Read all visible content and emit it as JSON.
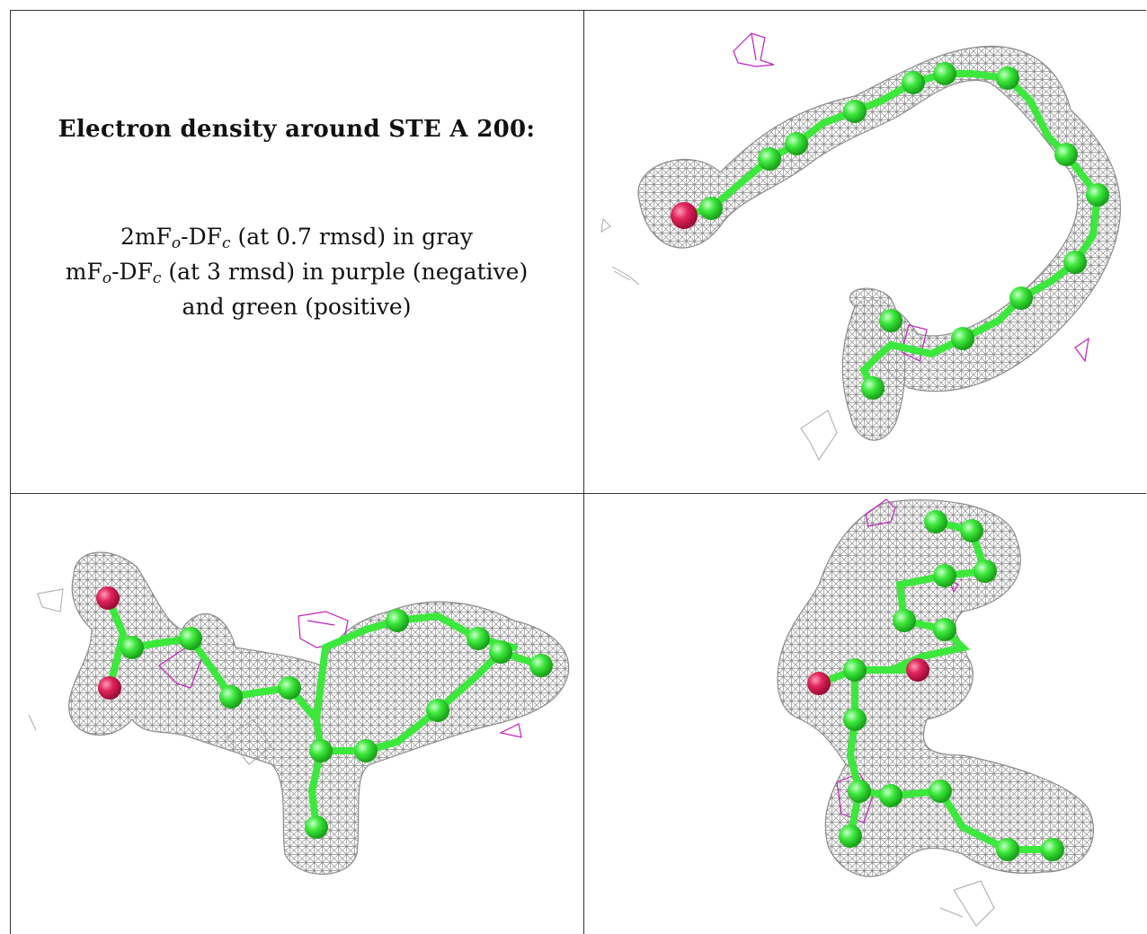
{
  "caption": {
    "title": "Electron density around STE A 200:",
    "line1": {
      "pre": "2mF",
      "sub1": "o",
      "mid": "-DF",
      "sub2": "c",
      "post": " (at 0.7 rmsd) in gray"
    },
    "line2": {
      "pre": "mF",
      "sub1": "o",
      "mid": "-DF",
      "sub2": "c",
      "post": " (at 3 rmsd) in purple (negative)"
    },
    "line3": "and green (positive)"
  },
  "colors": {
    "mesh_2fofc": "#9a9a9a",
    "mesh_negative": "#c020c0",
    "carbon_atom": "#3ce83c",
    "oxygen_atom": "#e0245a",
    "border": "#333333"
  },
  "views": [
    {
      "name": "view-top-right",
      "molecule": "STE A 200"
    },
    {
      "name": "view-bottom-left",
      "molecule": "STE A 200"
    },
    {
      "name": "view-bottom-right",
      "molecule": "STE A 200"
    }
  ]
}
